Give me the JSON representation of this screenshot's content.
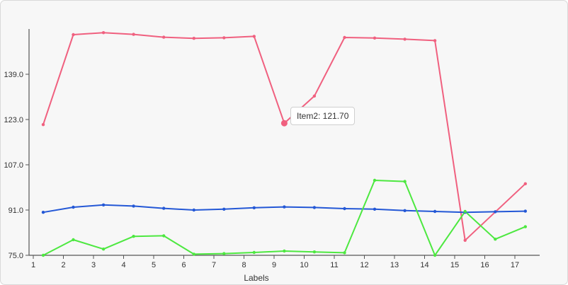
{
  "chart_data": {
    "type": "line",
    "x": [
      1,
      2,
      3,
      4,
      5,
      6,
      7,
      8,
      9,
      10,
      11,
      12,
      13,
      14,
      15,
      16,
      17
    ],
    "xlabel": "Labels",
    "ylabel": "",
    "ylim": [
      75,
      155
    ],
    "yticks": [
      "75.0",
      "91.0",
      "107.0",
      "123.0",
      "139.0"
    ],
    "grid": false,
    "series": [
      {
        "name": "Item2",
        "color": "#f0607f",
        "values": [
          121.2,
          153.0,
          153.7,
          153.1,
          152.1,
          151.7,
          151.9,
          152.4,
          121.7,
          131.3,
          152.0,
          151.8,
          151.4,
          150.9,
          80.3,
          null,
          100.3
        ]
      },
      {
        "color": "#2458d6",
        "values": [
          90.2,
          92.0,
          92.8,
          92.4,
          91.6,
          91.0,
          91.3,
          91.8,
          92.1,
          91.9,
          91.5,
          91.3,
          90.8,
          90.5,
          90.2,
          90.4,
          90.6
        ]
      },
      {
        "color": "#4de840",
        "values": [
          75.0,
          80.5,
          77.2,
          81.7,
          81.9,
          75.4,
          75.6,
          76.0,
          76.5,
          76.2,
          75.9,
          101.5,
          101.1,
          75.0,
          90.5,
          80.7,
          85.1
        ]
      }
    ],
    "tooltip": {
      "text": "Item2: 121.70",
      "series": "Item2",
      "x": 9,
      "value": 121.7
    }
  }
}
